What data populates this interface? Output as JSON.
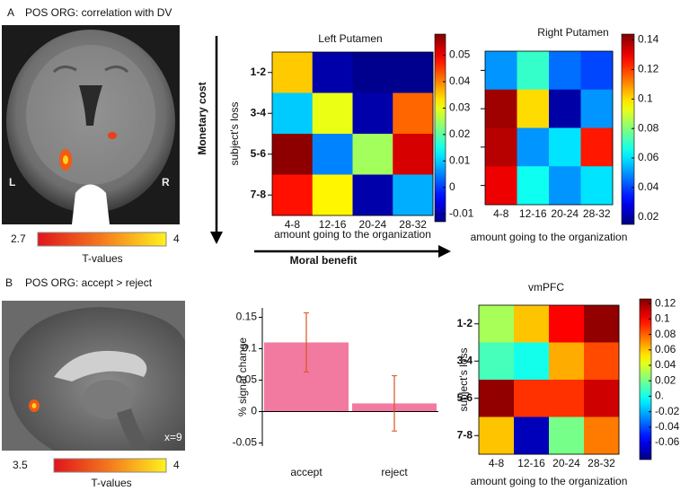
{
  "figure": {
    "panel_a": {
      "letter": "A",
      "title": "POS ORG: correlation with DV",
      "left_label": "L",
      "right_label": "R",
      "tvalue_range": [
        2.7,
        4
      ],
      "tvalue_label": "T-values",
      "y_arrow": "Monetary cost",
      "x_arrow": "Moral benefit"
    },
    "panel_b": {
      "letter": "B",
      "title": "POS ORG: accept > reject",
      "slice_label": "x=9",
      "tvalue_range": [
        3.5,
        4
      ],
      "tvalue_label": "T-values"
    }
  },
  "chart_data": [
    {
      "type": "heatmap",
      "title": "Left Putamen",
      "xlabel": "amount going to the organization",
      "ylabel": "subject's loss",
      "categories": [
        "4-8",
        "12-16",
        "20-24",
        "28-32"
      ],
      "y_categories": [
        "1-2",
        "3-4",
        "5-6",
        "7-8"
      ],
      "values": [
        [
          0.035,
          -0.01,
          -0.012,
          -0.012
        ],
        [
          0.01,
          0.03,
          -0.01,
          0.042
        ],
        [
          0.057,
          0.005,
          0.025,
          0.052
        ],
        [
          0.048,
          0.032,
          -0.01,
          0.008
        ]
      ],
      "colormap": "jet",
      "clim": [
        -0.013,
        0.058
      ],
      "cticks": [
        0.05,
        0.04,
        0.03,
        0.02,
        0.01,
        0,
        -0.01
      ]
    },
    {
      "type": "heatmap",
      "title": "Right Putamen",
      "xlabel": "amount going to the organization",
      "categories": [
        "4-8",
        "12-16",
        "20-24",
        "28-32"
      ],
      "y_categories": [
        null,
        null,
        null,
        null
      ],
      "values": [
        [
          0.05,
          0.07,
          0.045,
          0.04
        ],
        [
          0.14,
          0.1,
          0.02,
          0.05
        ],
        [
          0.137,
          0.05,
          0.06,
          0.125
        ],
        [
          0.13,
          0.065,
          0.05,
          0.06
        ]
      ],
      "colormap": "jet",
      "clim": [
        0.015,
        0.144
      ],
      "cticks": [
        0.14,
        0.12,
        0.1,
        0.08,
        0.06,
        0.04,
        0.02
      ]
    },
    {
      "type": "bar",
      "ylabel": "% signal change",
      "categories": [
        "accept",
        "reject"
      ],
      "values": [
        0.11,
        0.013
      ],
      "errors": [
        0.047,
        0.044
      ],
      "color": "#f27aa0",
      "error_color": "#d9541e",
      "ylim": [
        -0.055,
        0.165
      ],
      "yticks": [
        0.15,
        0.1,
        0.05,
        0,
        -0.05
      ]
    },
    {
      "type": "heatmap",
      "title": "vmPFC",
      "xlabel": "amount going to the organization",
      "ylabel": "subject's loss",
      "categories": [
        "4-8",
        "12-16",
        "20-24",
        "28-32"
      ],
      "y_categories": [
        "1-2",
        "3-4",
        "5-6",
        "7-8"
      ],
      "values": [
        [
          0.03,
          0.06,
          0.1,
          0.122
        ],
        [
          0.01,
          0.0,
          0.065,
          0.085
        ],
        [
          0.122,
          0.09,
          0.09,
          0.11
        ],
        [
          0.06,
          -0.07,
          0.02,
          0.075
        ]
      ],
      "colormap": "jet",
      "clim": [
        -0.082,
        0.126
      ],
      "cticks": [
        0.12,
        0.1,
        0.08,
        0.06,
        0.04,
        0.02,
        {
          "value": 0,
          "label": "0."
        },
        -0.02,
        -0.04,
        -0.06
      ]
    }
  ]
}
